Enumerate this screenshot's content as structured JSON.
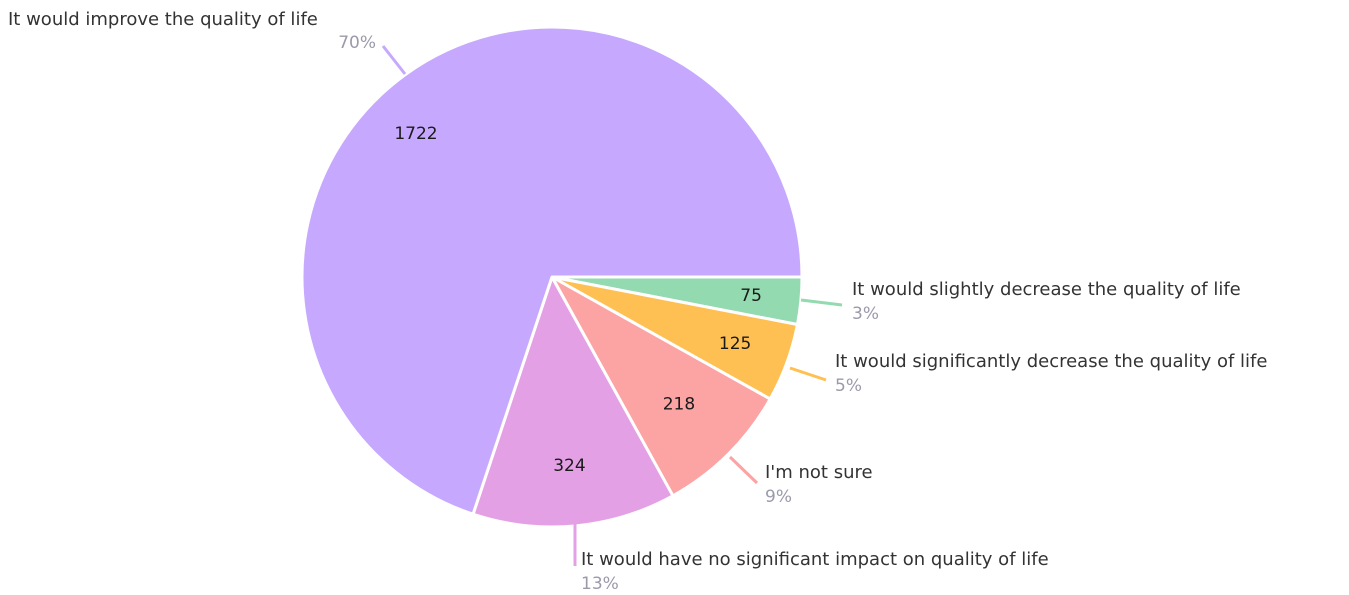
{
  "chart_data": {
    "type": "pie",
    "title": "",
    "slices": [
      {
        "label": "It would improve the quality of life",
        "value": 1722,
        "percent_label": "70%",
        "color": "#c6a9fe"
      },
      {
        "label": "It would slightly decrease the quality of life",
        "value": 75,
        "percent_label": "3%",
        "color": "#93dab0"
      },
      {
        "label": "It would significantly decrease the quality of life",
        "value": 125,
        "percent_label": "5%",
        "color": "#ffc053"
      },
      {
        "label": "I'm not sure",
        "value": 218,
        "percent_label": "9%",
        "color": "#fca3a3"
      },
      {
        "label": "It would have no significant impact on quality of life",
        "value": 324,
        "percent_label": "13%",
        "color": "#e4a0e4"
      }
    ]
  }
}
